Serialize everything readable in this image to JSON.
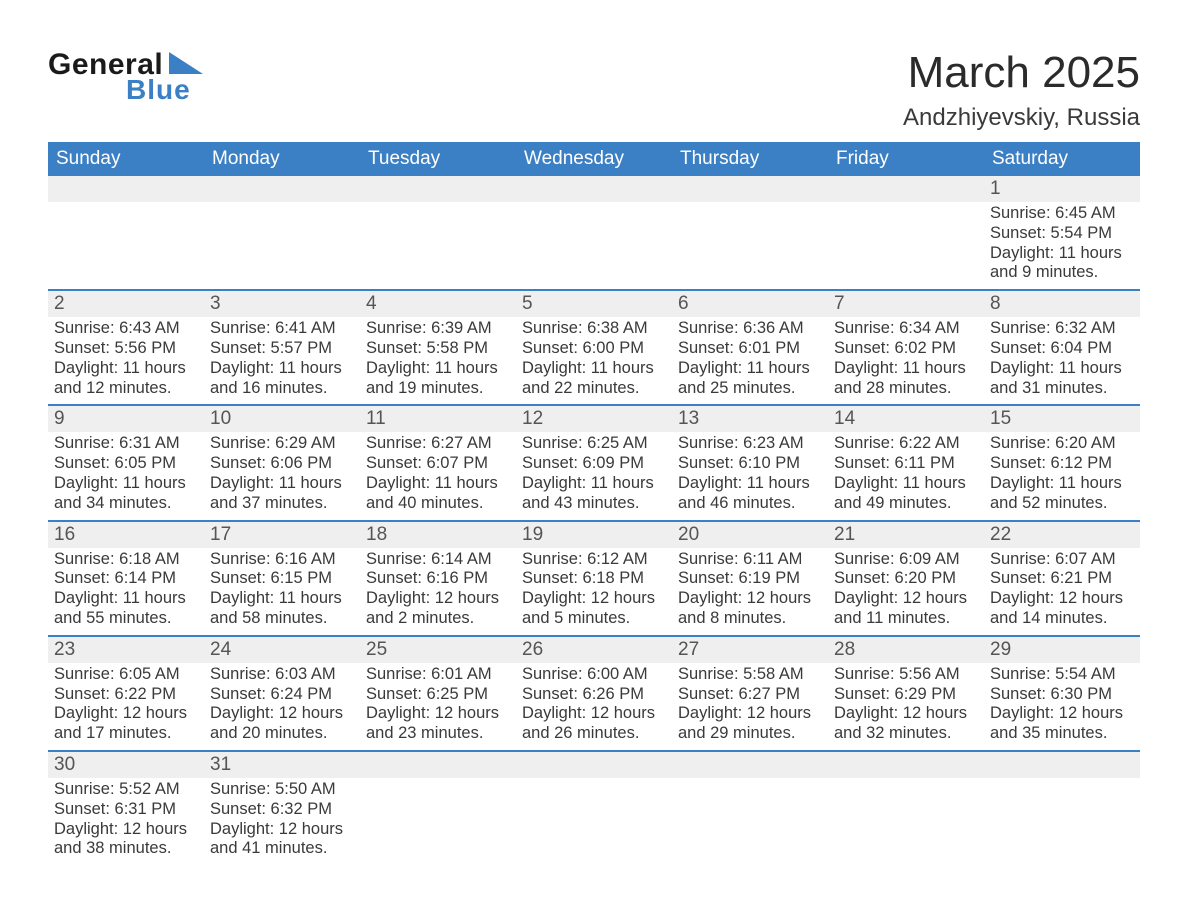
{
  "logo": {
    "text1": "General",
    "text2": "Blue",
    "triangle_color": "#3b7fc4"
  },
  "title": "March 2025",
  "location": "Andzhiyevskiy, Russia",
  "colors": {
    "header_bg": "#3b7fc4",
    "header_text": "#ffffff",
    "daynum_bg": "#efefef",
    "row_divider": "#3b7fc4",
    "body_text": "#3a3a3a"
  },
  "typography": {
    "title_fontsize": 44,
    "location_fontsize": 24,
    "dayheader_fontsize": 19,
    "daynum_fontsize": 19,
    "detail_fontsize": 16.5
  },
  "day_headers": [
    "Sunday",
    "Monday",
    "Tuesday",
    "Wednesday",
    "Thursday",
    "Friday",
    "Saturday"
  ],
  "weeks": [
    [
      null,
      null,
      null,
      null,
      null,
      null,
      {
        "n": "1",
        "sr": "Sunrise: 6:45 AM",
        "ss": "Sunset: 5:54 PM",
        "d1": "Daylight: 11 hours",
        "d2": "and 9 minutes."
      }
    ],
    [
      {
        "n": "2",
        "sr": "Sunrise: 6:43 AM",
        "ss": "Sunset: 5:56 PM",
        "d1": "Daylight: 11 hours",
        "d2": "and 12 minutes."
      },
      {
        "n": "3",
        "sr": "Sunrise: 6:41 AM",
        "ss": "Sunset: 5:57 PM",
        "d1": "Daylight: 11 hours",
        "d2": "and 16 minutes."
      },
      {
        "n": "4",
        "sr": "Sunrise: 6:39 AM",
        "ss": "Sunset: 5:58 PM",
        "d1": "Daylight: 11 hours",
        "d2": "and 19 minutes."
      },
      {
        "n": "5",
        "sr": "Sunrise: 6:38 AM",
        "ss": "Sunset: 6:00 PM",
        "d1": "Daylight: 11 hours",
        "d2": "and 22 minutes."
      },
      {
        "n": "6",
        "sr": "Sunrise: 6:36 AM",
        "ss": "Sunset: 6:01 PM",
        "d1": "Daylight: 11 hours",
        "d2": "and 25 minutes."
      },
      {
        "n": "7",
        "sr": "Sunrise: 6:34 AM",
        "ss": "Sunset: 6:02 PM",
        "d1": "Daylight: 11 hours",
        "d2": "and 28 minutes."
      },
      {
        "n": "8",
        "sr": "Sunrise: 6:32 AM",
        "ss": "Sunset: 6:04 PM",
        "d1": "Daylight: 11 hours",
        "d2": "and 31 minutes."
      }
    ],
    [
      {
        "n": "9",
        "sr": "Sunrise: 6:31 AM",
        "ss": "Sunset: 6:05 PM",
        "d1": "Daylight: 11 hours",
        "d2": "and 34 minutes."
      },
      {
        "n": "10",
        "sr": "Sunrise: 6:29 AM",
        "ss": "Sunset: 6:06 PM",
        "d1": "Daylight: 11 hours",
        "d2": "and 37 minutes."
      },
      {
        "n": "11",
        "sr": "Sunrise: 6:27 AM",
        "ss": "Sunset: 6:07 PM",
        "d1": "Daylight: 11 hours",
        "d2": "and 40 minutes."
      },
      {
        "n": "12",
        "sr": "Sunrise: 6:25 AM",
        "ss": "Sunset: 6:09 PM",
        "d1": "Daylight: 11 hours",
        "d2": "and 43 minutes."
      },
      {
        "n": "13",
        "sr": "Sunrise: 6:23 AM",
        "ss": "Sunset: 6:10 PM",
        "d1": "Daylight: 11 hours",
        "d2": "and 46 minutes."
      },
      {
        "n": "14",
        "sr": "Sunrise: 6:22 AM",
        "ss": "Sunset: 6:11 PM",
        "d1": "Daylight: 11 hours",
        "d2": "and 49 minutes."
      },
      {
        "n": "15",
        "sr": "Sunrise: 6:20 AM",
        "ss": "Sunset: 6:12 PM",
        "d1": "Daylight: 11 hours",
        "d2": "and 52 minutes."
      }
    ],
    [
      {
        "n": "16",
        "sr": "Sunrise: 6:18 AM",
        "ss": "Sunset: 6:14 PM",
        "d1": "Daylight: 11 hours",
        "d2": "and 55 minutes."
      },
      {
        "n": "17",
        "sr": "Sunrise: 6:16 AM",
        "ss": "Sunset: 6:15 PM",
        "d1": "Daylight: 11 hours",
        "d2": "and 58 minutes."
      },
      {
        "n": "18",
        "sr": "Sunrise: 6:14 AM",
        "ss": "Sunset: 6:16 PM",
        "d1": "Daylight: 12 hours",
        "d2": "and 2 minutes."
      },
      {
        "n": "19",
        "sr": "Sunrise: 6:12 AM",
        "ss": "Sunset: 6:18 PM",
        "d1": "Daylight: 12 hours",
        "d2": "and 5 minutes."
      },
      {
        "n": "20",
        "sr": "Sunrise: 6:11 AM",
        "ss": "Sunset: 6:19 PM",
        "d1": "Daylight: 12 hours",
        "d2": "and 8 minutes."
      },
      {
        "n": "21",
        "sr": "Sunrise: 6:09 AM",
        "ss": "Sunset: 6:20 PM",
        "d1": "Daylight: 12 hours",
        "d2": "and 11 minutes."
      },
      {
        "n": "22",
        "sr": "Sunrise: 6:07 AM",
        "ss": "Sunset: 6:21 PM",
        "d1": "Daylight: 12 hours",
        "d2": "and 14 minutes."
      }
    ],
    [
      {
        "n": "23",
        "sr": "Sunrise: 6:05 AM",
        "ss": "Sunset: 6:22 PM",
        "d1": "Daylight: 12 hours",
        "d2": "and 17 minutes."
      },
      {
        "n": "24",
        "sr": "Sunrise: 6:03 AM",
        "ss": "Sunset: 6:24 PM",
        "d1": "Daylight: 12 hours",
        "d2": "and 20 minutes."
      },
      {
        "n": "25",
        "sr": "Sunrise: 6:01 AM",
        "ss": "Sunset: 6:25 PM",
        "d1": "Daylight: 12 hours",
        "d2": "and 23 minutes."
      },
      {
        "n": "26",
        "sr": "Sunrise: 6:00 AM",
        "ss": "Sunset: 6:26 PM",
        "d1": "Daylight: 12 hours",
        "d2": "and 26 minutes."
      },
      {
        "n": "27",
        "sr": "Sunrise: 5:58 AM",
        "ss": "Sunset: 6:27 PM",
        "d1": "Daylight: 12 hours",
        "d2": "and 29 minutes."
      },
      {
        "n": "28",
        "sr": "Sunrise: 5:56 AM",
        "ss": "Sunset: 6:29 PM",
        "d1": "Daylight: 12 hours",
        "d2": "and 32 minutes."
      },
      {
        "n": "29",
        "sr": "Sunrise: 5:54 AM",
        "ss": "Sunset: 6:30 PM",
        "d1": "Daylight: 12 hours",
        "d2": "and 35 minutes."
      }
    ],
    [
      {
        "n": "30",
        "sr": "Sunrise: 5:52 AM",
        "ss": "Sunset: 6:31 PM",
        "d1": "Daylight: 12 hours",
        "d2": "and 38 minutes."
      },
      {
        "n": "31",
        "sr": "Sunrise: 5:50 AM",
        "ss": "Sunset: 6:32 PM",
        "d1": "Daylight: 12 hours",
        "d2": "and 41 minutes."
      },
      null,
      null,
      null,
      null,
      null
    ]
  ]
}
